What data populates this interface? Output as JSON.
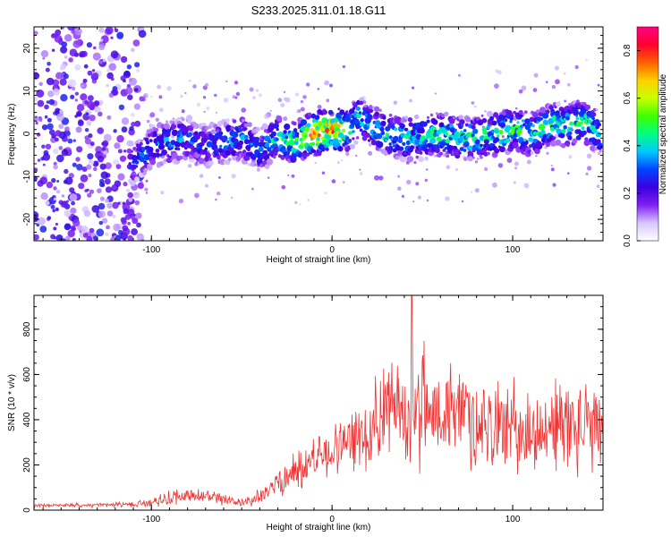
{
  "title": "S233.2025.311.01.18.G11",
  "chart_data": [
    {
      "type": "heatmap",
      "xlabel": "Height of straight line (km)",
      "ylabel": "Frequency (Hz)",
      "xlim": [
        -165,
        150
      ],
      "ylim": [
        -25,
        25
      ],
      "xticks": [
        -100,
        0,
        100
      ],
      "yticks": [
        -20,
        -10,
        0,
        10,
        20
      ],
      "colorbar": {
        "label": "Normalized spectral amplitude",
        "range": [
          0,
          0.9
        ],
        "ticks": [
          0.0,
          0.2,
          0.4,
          0.6,
          0.8
        ],
        "colors": [
          "#ffffff",
          "#d8c6ff",
          "#7f1ff2",
          "#3b00e0",
          "#0044ff",
          "#00c8ff",
          "#00ff80",
          "#40ff00",
          "#c8ff00",
          "#ffd000",
          "#ff6000",
          "#ff0030",
          "#ff0080"
        ]
      },
      "ridge": {
        "x": [
          -110,
          -100,
          -90,
          -80,
          -70,
          -60,
          -50,
          -40,
          -30,
          -20,
          -10,
          0,
          10,
          15,
          20,
          30,
          40,
          50,
          60,
          70,
          80,
          90,
          100,
          110,
          120,
          130,
          140,
          148
        ],
        "frequency": [
          -7,
          -3,
          -2,
          -1,
          -3,
          -2,
          -1,
          -4,
          -1,
          -2,
          0,
          1,
          1,
          4,
          2,
          0,
          -1,
          -1,
          0,
          -1,
          -1,
          0,
          1,
          0,
          2,
          2,
          3,
          0
        ],
        "peak": [
          0.3,
          0.35,
          0.4,
          0.35,
          0.3,
          0.35,
          0.4,
          0.35,
          0.45,
          0.55,
          0.75,
          0.85,
          0.5,
          0.45,
          0.4,
          0.45,
          0.45,
          0.45,
          0.5,
          0.5,
          0.5,
          0.5,
          0.55,
          0.5,
          0.5,
          0.5,
          0.5,
          0.4
        ]
      }
    },
    {
      "type": "line",
      "xlabel": "Height of straight line (km)",
      "ylabel": "SNR (10 * v/v)",
      "xlim": [
        -165,
        150
      ],
      "ylim": [
        0,
        950
      ],
      "xticks": [
        -100,
        0,
        100
      ],
      "yticks": [
        0,
        200,
        400,
        600,
        800
      ],
      "color": "#ee3333",
      "envelope": {
        "x": [
          -165,
          -130,
          -110,
          -100,
          -90,
          -80,
          -70,
          -60,
          -50,
          -40,
          -30,
          -20,
          -10,
          0,
          10,
          20,
          25,
          30,
          40,
          50,
          60,
          70,
          80,
          90,
          100,
          110,
          120,
          130,
          140,
          150
        ],
        "mean": [
          20,
          22,
          25,
          35,
          55,
          65,
          60,
          45,
          30,
          60,
          120,
          170,
          230,
          260,
          300,
          350,
          420,
          460,
          420,
          460,
          440,
          420,
          400,
          380,
          360,
          330,
          360,
          380,
          360,
          340
        ],
        "spread": [
          8,
          10,
          12,
          20,
          35,
          40,
          35,
          25,
          15,
          40,
          70,
          90,
          110,
          120,
          130,
          160,
          200,
          230,
          240,
          260,
          240,
          230,
          220,
          210,
          200,
          190,
          210,
          220,
          210,
          200
        ],
        "max_peak": 950
      }
    }
  ]
}
